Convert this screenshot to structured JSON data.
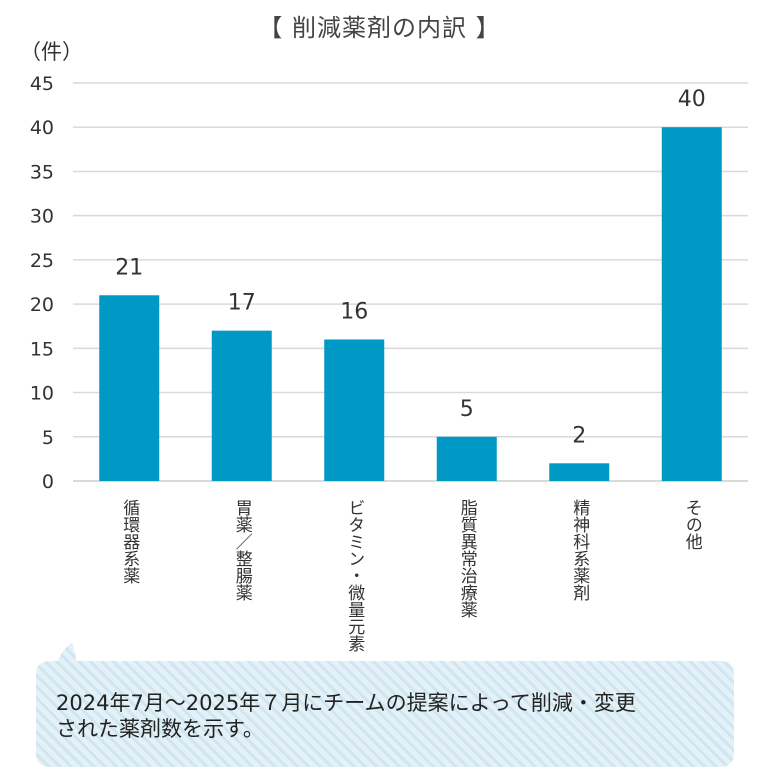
{
  "chart_data": {
    "type": "bar",
    "title": "【 削減薬剤の内訳 】",
    "ylabel": "（件）",
    "xlabel": "",
    "ylim": [
      0,
      45
    ],
    "yticks": [
      0,
      5,
      10,
      15,
      20,
      25,
      30,
      35,
      40,
      45
    ],
    "grid": true,
    "categories": [
      "循環器系薬",
      "胃薬／整腸薬",
      "ビタミン・微量元素",
      "脂質異常治療薬",
      "精神科系薬剤",
      "その他"
    ],
    "values": [
      21,
      17,
      16,
      5,
      2,
      40
    ],
    "bar_color": "#0099c6",
    "grid_color": "#d9d9d9"
  },
  "note": {
    "line1": "2024年7月～2025年７月にチームの提案によって削減・変更",
    "line2": "された薬剤数を示す。"
  },
  "colors": {
    "note_stripe_light": "#e4f2f8",
    "note_stripe_dark": "#cfe6f1"
  }
}
